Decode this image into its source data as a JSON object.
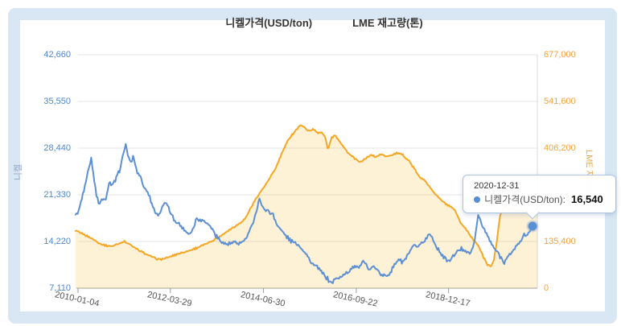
{
  "legend": {
    "items": [
      {
        "label": "니켈가격(USD/ton)",
        "color": "#5d8fd5",
        "marker": "line"
      },
      {
        "label": "LME 재고량(톤)",
        "color": "#f5a623",
        "marker": "square"
      }
    ]
  },
  "chart_data": {
    "type": "line",
    "title": "",
    "grid": "horizontal",
    "x_axis": {
      "tick_labels": [
        "2010-01-04",
        "2012-03-29",
        "2014-06-30",
        "2016-09-22",
        "2018-12-17"
      ],
      "tick_years": [
        2010.01,
        2012.24,
        2014.49,
        2016.73,
        2018.96
      ]
    },
    "y_left": {
      "title": "니켈",
      "tick_labels": [
        "42,660",
        "35,550",
        "28,440",
        "21,330",
        "14,220",
        "7,110"
      ],
      "tick_values": [
        42660,
        35550,
        28440,
        21330,
        14220,
        7110
      ],
      "range": [
        7110,
        42660
      ],
      "color": "#4f86cb"
    },
    "y_right": {
      "title": "LME 재고량",
      "tick_labels": [
        "677,000",
        "541,600",
        "406,200",
        "270,800",
        "135,400",
        "0"
      ],
      "tick_values": [
        677000,
        541600,
        406200,
        270800,
        135400,
        0
      ],
      "range": [
        0,
        677000
      ],
      "color": "#f2a43c"
    },
    "series": [
      {
        "name": "LME 재고량(톤)",
        "axis": "right",
        "style": "area",
        "line_color": "#f5a623",
        "fill_color": "rgba(245,190,70,0.22)",
        "points": [
          [
            2009.95,
            166000
          ],
          [
            2010.1,
            159000
          ],
          [
            2010.25,
            150000
          ],
          [
            2010.4,
            140000
          ],
          [
            2010.55,
            129000
          ],
          [
            2010.7,
            123000
          ],
          [
            2010.85,
            122000
          ],
          [
            2011.0,
            130000
          ],
          [
            2011.12,
            136000
          ],
          [
            2011.25,
            128000
          ],
          [
            2011.4,
            115000
          ],
          [
            2011.55,
            105000
          ],
          [
            2011.7,
            96000
          ],
          [
            2011.85,
            88000
          ],
          [
            2011.97,
            83000
          ],
          [
            2012.1,
            86000
          ],
          [
            2012.25,
            92000
          ],
          [
            2012.4,
            99000
          ],
          [
            2012.55,
            104000
          ],
          [
            2012.7,
            109000
          ],
          [
            2012.85,
            116000
          ],
          [
            2013.0,
            123000
          ],
          [
            2013.15,
            131000
          ],
          [
            2013.3,
            141000
          ],
          [
            2013.45,
            151000
          ],
          [
            2013.6,
            164000
          ],
          [
            2013.75,
            176000
          ],
          [
            2013.9,
            187000
          ],
          [
            2014.05,
            202000
          ],
          [
            2014.2,
            237000
          ],
          [
            2014.35,
            268000
          ],
          [
            2014.5,
            293000
          ],
          [
            2014.65,
            320000
          ],
          [
            2014.8,
            352000
          ],
          [
            2014.95,
            396000
          ],
          [
            2015.1,
            433000
          ],
          [
            2015.25,
            456000
          ],
          [
            2015.4,
            474000
          ],
          [
            2015.5,
            464000
          ],
          [
            2015.6,
            455000
          ],
          [
            2015.7,
            463000
          ],
          [
            2015.8,
            449000
          ],
          [
            2015.9,
            452000
          ],
          [
            2015.98,
            438000
          ],
          [
            2016.05,
            400000
          ],
          [
            2016.12,
            432000
          ],
          [
            2016.2,
            446000
          ],
          [
            2016.32,
            428000
          ],
          [
            2016.45,
            405000
          ],
          [
            2016.58,
            386000
          ],
          [
            2016.7,
            375000
          ],
          [
            2016.82,
            365000
          ],
          [
            2016.95,
            376000
          ],
          [
            2017.08,
            386000
          ],
          [
            2017.2,
            381000
          ],
          [
            2017.32,
            388000
          ],
          [
            2017.45,
            383000
          ],
          [
            2017.58,
            386000
          ],
          [
            2017.72,
            392000
          ],
          [
            2017.85,
            387000
          ],
          [
            2018.0,
            370000
          ],
          [
            2018.15,
            343000
          ],
          [
            2018.28,
            318000
          ],
          [
            2018.38,
            316000
          ],
          [
            2018.5,
            293000
          ],
          [
            2018.65,
            272000
          ],
          [
            2018.8,
            253000
          ],
          [
            2018.95,
            239000
          ],
          [
            2019.1,
            228000
          ],
          [
            2019.25,
            190000
          ],
          [
            2019.4,
            168000
          ],
          [
            2019.55,
            142000
          ],
          [
            2019.68,
            124000
          ],
          [
            2019.8,
            90000
          ],
          [
            2019.9,
            68000
          ],
          [
            2019.97,
            63000
          ],
          [
            2020.05,
            78000
          ],
          [
            2020.12,
            130000
          ],
          [
            2020.2,
            210000
          ],
          [
            2020.28,
            236000
          ],
          [
            2020.4,
            230000
          ],
          [
            2020.55,
            228000
          ],
          [
            2020.7,
            224000
          ],
          [
            2020.85,
            222000
          ],
          [
            2021.1,
            218000
          ]
        ]
      },
      {
        "name": "니켈가격(USD/ton)",
        "axis": "left",
        "style": "line",
        "line_color": "#5d8fd5",
        "fill_color": "none",
        "points": [
          [
            2009.95,
            18300
          ],
          [
            2010.02,
            18600
          ],
          [
            2010.08,
            20300
          ],
          [
            2010.16,
            22300
          ],
          [
            2010.24,
            24600
          ],
          [
            2010.33,
            27000
          ],
          [
            2010.38,
            24300
          ],
          [
            2010.45,
            21500
          ],
          [
            2010.52,
            19600
          ],
          [
            2010.6,
            20800
          ],
          [
            2010.68,
            20400
          ],
          [
            2010.76,
            23300
          ],
          [
            2010.84,
            22700
          ],
          [
            2010.92,
            23600
          ],
          [
            2011.0,
            24800
          ],
          [
            2011.08,
            26800
          ],
          [
            2011.16,
            29100
          ],
          [
            2011.22,
            27200
          ],
          [
            2011.28,
            26100
          ],
          [
            2011.35,
            27200
          ],
          [
            2011.43,
            24800
          ],
          [
            2011.52,
            24200
          ],
          [
            2011.6,
            22400
          ],
          [
            2011.7,
            21800
          ],
          [
            2011.8,
            19800
          ],
          [
            2011.9,
            18400
          ],
          [
            2011.97,
            18300
          ],
          [
            2012.06,
            19800
          ],
          [
            2012.14,
            20100
          ],
          [
            2012.22,
            18900
          ],
          [
            2012.32,
            17600
          ],
          [
            2012.42,
            17100
          ],
          [
            2012.52,
            16400
          ],
          [
            2012.62,
            15700
          ],
          [
            2012.7,
            15400
          ],
          [
            2012.8,
            16300
          ],
          [
            2012.88,
            17900
          ],
          [
            2012.96,
            17400
          ],
          [
            2013.05,
            17500
          ],
          [
            2013.14,
            16900
          ],
          [
            2013.24,
            16300
          ],
          [
            2013.34,
            15100
          ],
          [
            2013.44,
            14400
          ],
          [
            2013.54,
            13900
          ],
          [
            2013.64,
            13800
          ],
          [
            2013.76,
            14000
          ],
          [
            2013.88,
            13900
          ],
          [
            2013.97,
            14100
          ],
          [
            2014.06,
            14600
          ],
          [
            2014.15,
            15600
          ],
          [
            2014.24,
            17300
          ],
          [
            2014.31,
            18600
          ],
          [
            2014.39,
            20900
          ],
          [
            2014.46,
            19400
          ],
          [
            2014.54,
            19100
          ],
          [
            2014.62,
            18800
          ],
          [
            2014.71,
            18400
          ],
          [
            2014.8,
            17000
          ],
          [
            2014.9,
            16100
          ],
          [
            2015.0,
            15300
          ],
          [
            2015.1,
            14600
          ],
          [
            2015.2,
            14100
          ],
          [
            2015.3,
            13900
          ],
          [
            2015.4,
            13200
          ],
          [
            2015.5,
            12600
          ],
          [
            2015.6,
            11400
          ],
          [
            2015.7,
            10600
          ],
          [
            2015.8,
            10300
          ],
          [
            2015.9,
            9500
          ],
          [
            2016.0,
            8800
          ],
          [
            2016.08,
            8200
          ],
          [
            2016.14,
            7900
          ],
          [
            2016.22,
            8500
          ],
          [
            2016.32,
            8700
          ],
          [
            2016.42,
            9100
          ],
          [
            2016.52,
            9400
          ],
          [
            2016.62,
            10300
          ],
          [
            2016.72,
            10500
          ],
          [
            2016.8,
            10200
          ],
          [
            2016.88,
            11100
          ],
          [
            2016.96,
            10700
          ],
          [
            2017.06,
            10100
          ],
          [
            2017.16,
            10400
          ],
          [
            2017.26,
            9700
          ],
          [
            2017.36,
            8900
          ],
          [
            2017.46,
            9100
          ],
          [
            2017.56,
            9600
          ],
          [
            2017.66,
            10700
          ],
          [
            2017.76,
            11600
          ],
          [
            2017.84,
            11000
          ],
          [
            2017.94,
            11700
          ],
          [
            2018.04,
            12900
          ],
          [
            2018.13,
            13600
          ],
          [
            2018.22,
            13300
          ],
          [
            2018.32,
            13900
          ],
          [
            2018.42,
            14700
          ],
          [
            2018.5,
            15400
          ],
          [
            2018.58,
            14700
          ],
          [
            2018.66,
            13400
          ],
          [
            2018.76,
            12600
          ],
          [
            2018.86,
            11700
          ],
          [
            2018.96,
            11100
          ],
          [
            2019.06,
            11900
          ],
          [
            2019.16,
            12600
          ],
          [
            2019.26,
            13100
          ],
          [
            2019.36,
            13000
          ],
          [
            2019.46,
            12300
          ],
          [
            2019.54,
            13000
          ],
          [
            2019.62,
            15600
          ],
          [
            2019.68,
            18400
          ],
          [
            2019.74,
            17300
          ],
          [
            2019.82,
            16000
          ],
          [
            2019.9,
            15100
          ],
          [
            2019.98,
            14000
          ],
          [
            2020.06,
            13200
          ],
          [
            2020.14,
            12600
          ],
          [
            2020.22,
            11800
          ],
          [
            2020.3,
            11100
          ],
          [
            2020.38,
            11700
          ],
          [
            2020.46,
            12400
          ],
          [
            2020.54,
            13000
          ],
          [
            2020.62,
            13700
          ],
          [
            2020.7,
            14400
          ],
          [
            2020.78,
            15200
          ],
          [
            2020.85,
            14900
          ],
          [
            2020.92,
            15800
          ],
          [
            2020.99,
            16540
          ]
        ]
      }
    ],
    "tooltip": {
      "date": "2020-12-31",
      "label": "니켈가격(USD/ton):",
      "value": "16,540",
      "point_year": 2020.99,
      "point_value": 16540
    },
    "colors": {
      "grid": "#e4e4e4",
      "axis_line": "#9e9e9e",
      "right_border": "#d9d9d9",
      "tick": "#999999",
      "x_label": "#555555"
    }
  }
}
